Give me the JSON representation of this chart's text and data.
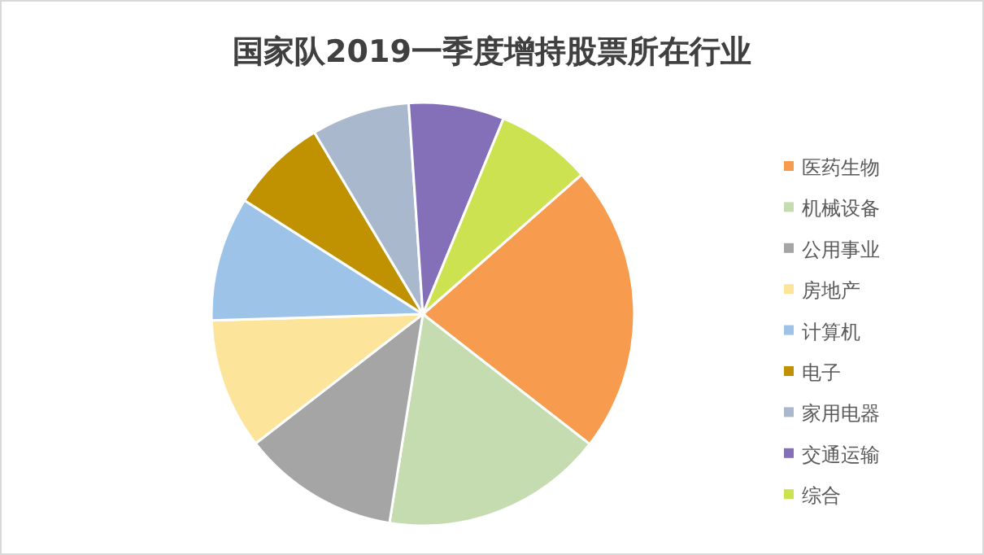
{
  "chart_data": {
    "type": "pie",
    "title": "国家队2019一季度增持股票所在行业",
    "categories": [
      "医药生物",
      "机械设备",
      "公用事业",
      "房地产",
      "计算机",
      "电子",
      "家用电器",
      "交通运输",
      "综合"
    ],
    "values": [
      22,
      17,
      12,
      10,
      9.5,
      7.4,
      7.5,
      7.3,
      7.3
    ],
    "colors": [
      "#f79c4f",
      "#c4dcb0",
      "#a5a5a5",
      "#fde49b",
      "#9ec3e8",
      "#c09100",
      "#a9b8cc",
      "#8470b8",
      "#cce251"
    ],
    "legend": "right"
  }
}
